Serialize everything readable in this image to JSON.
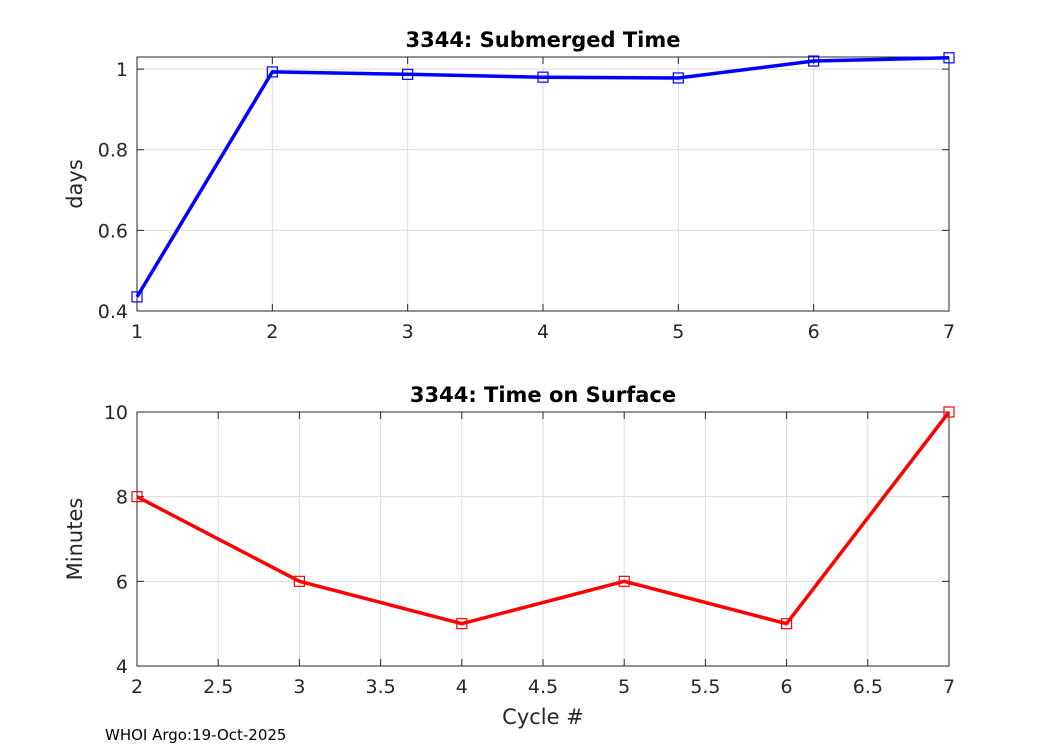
{
  "footer": {
    "text": "WHOI Argo:19-Oct-2025"
  },
  "chart_data": [
    {
      "type": "line",
      "title": "3344: Submerged Time",
      "xlabel": "",
      "ylabel": "days",
      "xlim": [
        1,
        7
      ],
      "ylim": [
        0.4,
        1.03
      ],
      "grid": true,
      "legend": "none",
      "color": "#0000ff",
      "marker": "square",
      "x": [
        1,
        2,
        3,
        4,
        5,
        6,
        7
      ],
      "y": [
        0.435,
        0.993,
        0.987,
        0.98,
        0.978,
        1.02,
        1.028
      ],
      "x_ticks": [
        1,
        2,
        3,
        4,
        5,
        6,
        7
      ],
      "x_tick_labels": [
        "1",
        "2",
        "3",
        "4",
        "5",
        "6",
        "7"
      ],
      "y_ticks": [
        0.4,
        0.6,
        0.8,
        1
      ],
      "y_tick_labels": [
        "0.4",
        "0.6",
        "0.8",
        "1"
      ]
    },
    {
      "type": "line",
      "title": "3344: Time on Surface",
      "xlabel": "Cycle #",
      "ylabel": "Minutes",
      "xlim": [
        2,
        7
      ],
      "ylim": [
        4,
        10
      ],
      "grid": true,
      "legend": "none",
      "color": "#ff0000",
      "marker": "square",
      "x": [
        2,
        3,
        4,
        5,
        6,
        7
      ],
      "y": [
        8,
        6,
        5,
        6,
        5,
        10
      ],
      "x_ticks": [
        2,
        2.5,
        3,
        3.5,
        4,
        4.5,
        5,
        5.5,
        6,
        6.5,
        7
      ],
      "x_tick_labels": [
        "2",
        "2.5",
        "3",
        "3.5",
        "4",
        "4.5",
        "5",
        "5.5",
        "6",
        "6.5",
        "7"
      ],
      "y_ticks": [
        4,
        6,
        8,
        10
      ],
      "y_tick_labels": [
        "4",
        "6",
        "8",
        "10"
      ]
    }
  ]
}
